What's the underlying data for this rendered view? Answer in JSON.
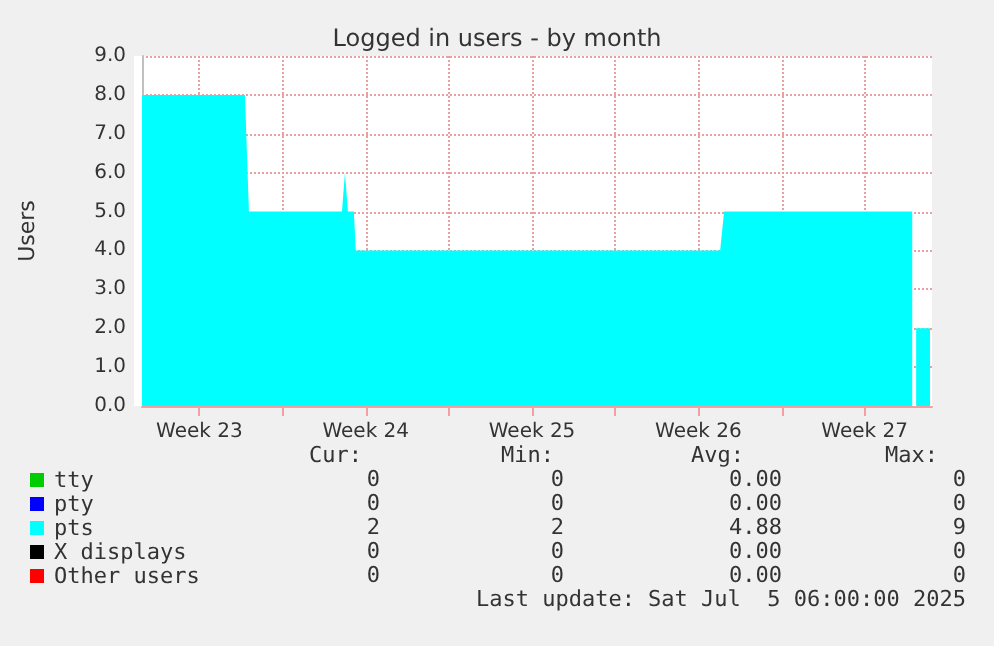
{
  "chart_data": {
    "type": "area",
    "title": "Logged in users - by month",
    "ylabel": "Users",
    "xlim": [
      "2025-06-03T02:00",
      "2025-07-06T08:00"
    ],
    "xticks": [
      {
        "value": "2025-06-05T12:00",
        "label": "Week 23"
      },
      {
        "value": "2025-06-09T00:00",
        "label": null
      },
      {
        "value": "2025-06-12T12:00",
        "label": "Week 24"
      },
      {
        "value": "2025-06-16T00:00",
        "label": null
      },
      {
        "value": "2025-06-19T12:00",
        "label": "Week 25"
      },
      {
        "value": "2025-06-23T00:00",
        "label": null
      },
      {
        "value": "2025-06-26T12:00",
        "label": "Week 26"
      },
      {
        "value": "2025-06-30T00:00",
        "label": null
      },
      {
        "value": "2025-07-03T12:00",
        "label": "Week 27"
      }
    ],
    "ylim": [
      0,
      9
    ],
    "yticks": [
      {
        "value": 0,
        "label": "0.0"
      },
      {
        "value": 1,
        "label": "1.0"
      },
      {
        "value": 2,
        "label": "2.0"
      },
      {
        "value": 3,
        "label": "3.0"
      },
      {
        "value": 4,
        "label": "4.0"
      },
      {
        "value": 5,
        "label": "5.0"
      },
      {
        "value": 6,
        "label": "6.0"
      },
      {
        "value": 7,
        "label": "7.0"
      },
      {
        "value": 8,
        "label": "8.0"
      },
      {
        "value": 9,
        "label": "9.0"
      }
    ],
    "grid": true,
    "legend": "bottom left",
    "series": [
      {
        "name": "tty",
        "color": "#00cc00"
      },
      {
        "name": "pty",
        "color": "#0000ff"
      },
      {
        "name": "pts",
        "color": "#00ffff",
        "x": [
          "2025-06-03T02:00",
          "2025-06-07T10:00",
          "2025-06-07T14:00",
          "2025-06-11T12:00",
          "2025-06-11T15:00",
          "2025-06-11T18:00",
          "2025-06-12T00:00",
          "2025-06-12T02:00",
          "2025-06-27T10:00",
          "2025-06-27T14:00",
          "2025-07-05T12:00",
          "2025-07-05T14:00",
          "2025-07-05T16:00",
          "2025-07-06T06:00"
        ],
        "values": [
          8,
          8,
          5,
          5,
          6,
          5,
          5,
          4,
          4,
          5,
          5,
          null,
          2,
          2
        ]
      },
      {
        "name": "X displays",
        "color": "#000000"
      },
      {
        "name": "Other users",
        "color": "#ff0000"
      }
    ],
    "annotations": [
      "Cur:",
      "Min:",
      "Avg:",
      "Max:",
      "0",
      "0",
      "0.00",
      "0",
      "0",
      "0",
      "0.00",
      "0",
      "2",
      "2",
      "4.88",
      "9",
      "0",
      "0",
      "0.00",
      "0",
      "0",
      "0",
      "0.00",
      "0",
      "Last update: Sat Jul  5 06:00:00 2025"
    ]
  }
}
